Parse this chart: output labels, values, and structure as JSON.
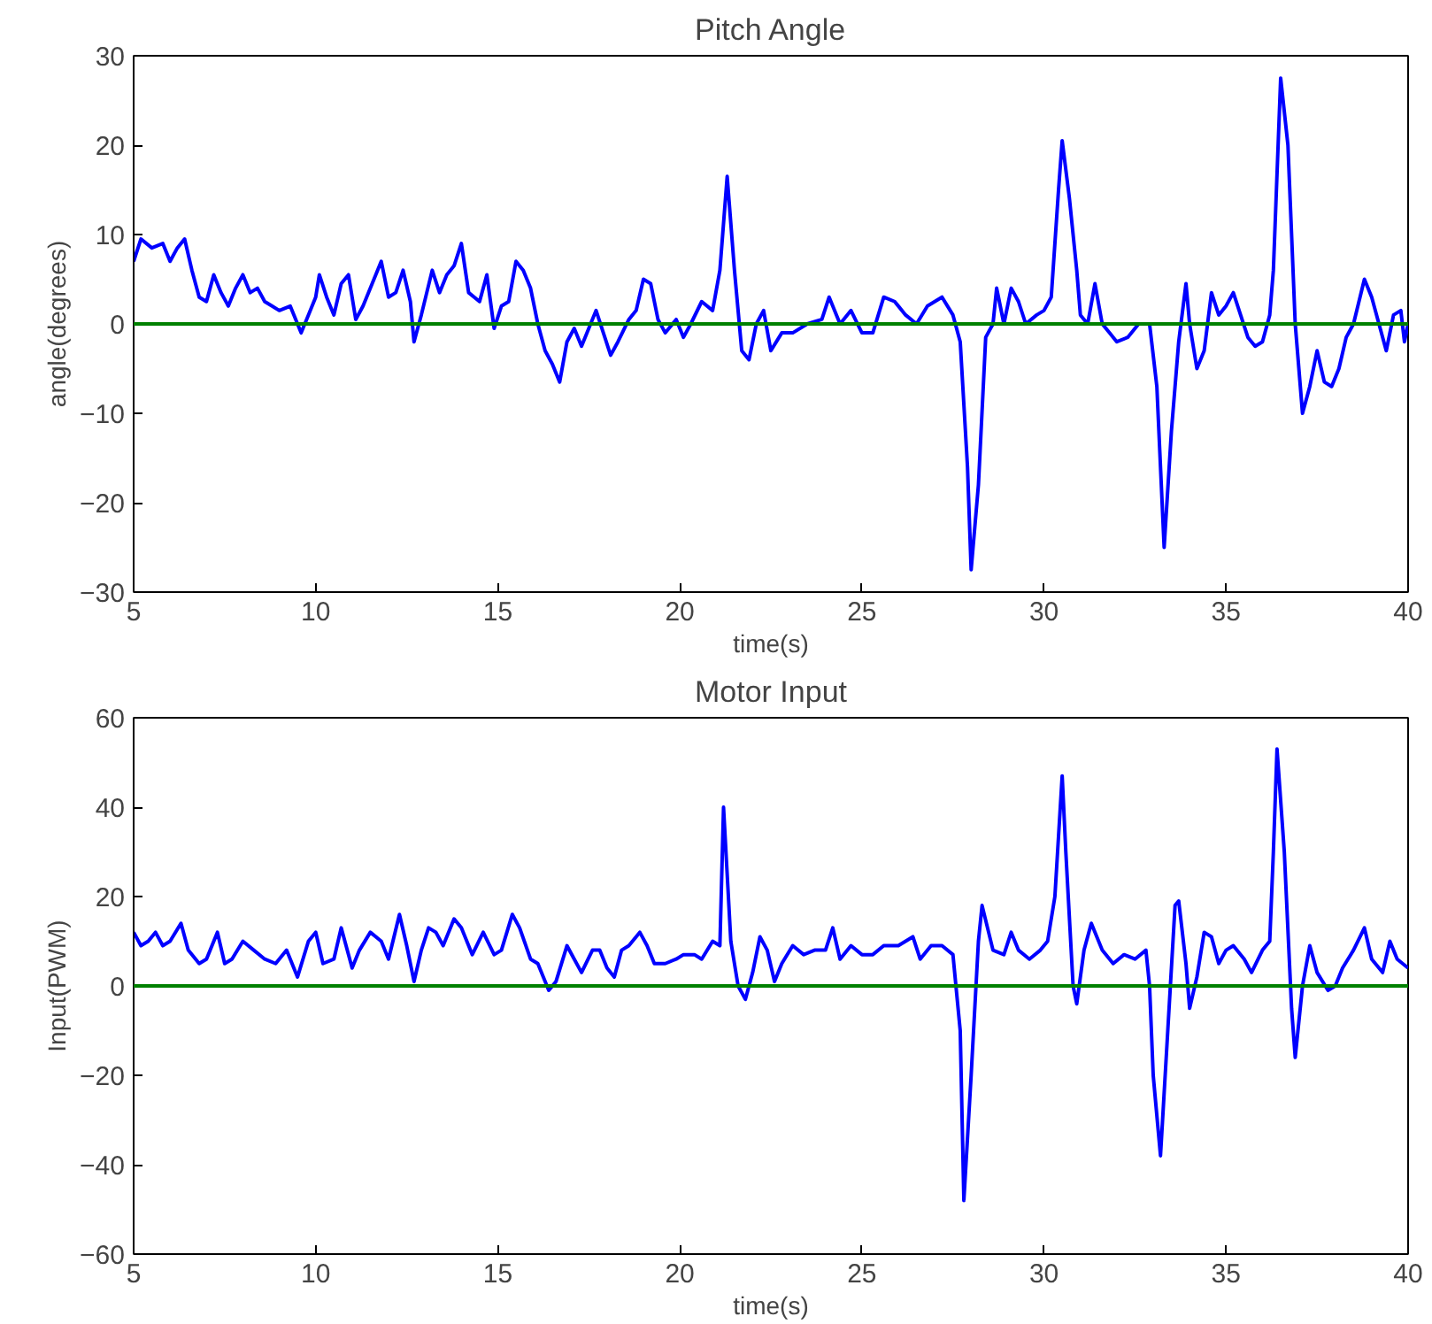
{
  "chart_data": [
    {
      "type": "line",
      "title": "Pitch Angle",
      "xlabel": "time(s)",
      "ylabel": "angle(degrees)",
      "xlim": [
        5,
        40
      ],
      "xticks": [
        5,
        10,
        15,
        20,
        25,
        30,
        35,
        40
      ],
      "ylim": [
        -30,
        30
      ],
      "yticks": [
        -30,
        -20,
        -10,
        0,
        10,
        20,
        30
      ],
      "ref_lines": [
        {
          "axis": "y",
          "value": 0,
          "color": "#008000"
        }
      ],
      "x": [
        5,
        5.2,
        5.5,
        5.8,
        6.0,
        6.2,
        6.4,
        6.6,
        6.8,
        7.0,
        7.2,
        7.4,
        7.6,
        7.8,
        8.0,
        8.2,
        8.4,
        8.6,
        8.8,
        9.0,
        9.3,
        9.6,
        9.8,
        10.0,
        10.1,
        10.3,
        10.5,
        10.7,
        10.9,
        11.1,
        11.3,
        11.6,
        11.8,
        12.0,
        12.2,
        12.4,
        12.6,
        12.7,
        12.9,
        13.2,
        13.4,
        13.6,
        13.8,
        14.0,
        14.2,
        14.5,
        14.7,
        14.9,
        15.1,
        15.3,
        15.5,
        15.7,
        15.9,
        16.1,
        16.3,
        16.5,
        16.7,
        16.9,
        17.1,
        17.3,
        17.5,
        17.7,
        17.9,
        18.1,
        18.3,
        18.6,
        18.8,
        19.0,
        19.2,
        19.4,
        19.6,
        19.9,
        20.1,
        20.3,
        20.6,
        20.9,
        21.1,
        21.3,
        21.5,
        21.7,
        21.9,
        22.1,
        22.3,
        22.5,
        22.8,
        23.1,
        23.5,
        23.9,
        24.1,
        24.4,
        24.7,
        25.0,
        25.3,
        25.6,
        25.9,
        26.2,
        26.5,
        26.8,
        27.2,
        27.5,
        27.7,
        27.9,
        28.0,
        28.2,
        28.4,
        28.6,
        28.7,
        28.9,
        29.1,
        29.3,
        29.5,
        29.8,
        30.0,
        30.2,
        30.4,
        30.5,
        30.7,
        30.9,
        31.0,
        31.2,
        31.4,
        31.6,
        31.8,
        32.0,
        32.3,
        32.6,
        32.9,
        33.1,
        33.3,
        33.5,
        33.7,
        33.9,
        34.0,
        34.2,
        34.4,
        34.6,
        34.8,
        35.0,
        35.2,
        35.4,
        35.6,
        35.8,
        36.0,
        36.2,
        36.3,
        36.5,
        36.7,
        36.9,
        37.1,
        37.3,
        37.5,
        37.7,
        37.9,
        38.1,
        38.3,
        38.5,
        38.8,
        39.0,
        39.2,
        39.4,
        39.6,
        39.8,
        39.9,
        40.0
      ],
      "series": [
        {
          "color": "#0000ff",
          "values": [
            7,
            9.5,
            8.5,
            9,
            7,
            8.5,
            9.5,
            6,
            3,
            2.5,
            5.5,
            3.5,
            2,
            4,
            5.5,
            3.5,
            4,
            2.5,
            2,
            1.5,
            2,
            -1,
            1,
            3,
            5.5,
            3,
            1,
            4.5,
            5.5,
            0.5,
            2,
            5,
            7,
            3,
            3.5,
            6,
            2.5,
            -2,
            1,
            6,
            3.5,
            5.5,
            6.5,
            9,
            3.5,
            2.5,
            5.5,
            -0.5,
            2,
            2.5,
            7,
            6,
            4,
            0,
            -3,
            -4.5,
            -6.5,
            -2,
            -0.5,
            -2.5,
            -0.5,
            1.5,
            -1,
            -3.5,
            -2,
            0.5,
            1.5,
            5,
            4.5,
            0.5,
            -1,
            0.5,
            -1.5,
            0,
            2.5,
            1.5,
            6,
            16.5,
            6,
            -3,
            -4,
            0,
            1.5,
            -3,
            -1,
            -1,
            0,
            0.5,
            3,
            0,
            1.5,
            -1,
            -1,
            3,
            2.5,
            1,
            0,
            2,
            3,
            1,
            -2,
            -16,
            -27.5,
            -18,
            -1.5,
            0,
            4,
            0,
            4,
            2.5,
            0,
            1,
            1.5,
            3,
            15,
            20.5,
            14,
            6,
            1,
            0,
            4.5,
            0,
            -1,
            -2,
            -1.5,
            0,
            0,
            -7,
            -25,
            -12,
            -2,
            4.5,
            0,
            -5,
            -3,
            3.5,
            1,
            2,
            3.5,
            1,
            -1.5,
            -2.5,
            -2,
            1,
            6,
            27.5,
            20,
            0,
            -10,
            -7,
            -3,
            -6.5,
            -7,
            -5,
            -1.5,
            0,
            5,
            3,
            0,
            -3,
            1,
            1.5,
            -2,
            0
          ]
        }
      ]
    },
    {
      "type": "line",
      "title": "Motor Input",
      "xlabel": "time(s)",
      "ylabel": "Input(PWM)",
      "xlim": [
        5,
        40
      ],
      "xticks": [
        5,
        10,
        15,
        20,
        25,
        30,
        35,
        40
      ],
      "ylim": [
        -60,
        60
      ],
      "yticks": [
        -60,
        -40,
        -20,
        0,
        20,
        40,
        60
      ],
      "ref_lines": [
        {
          "axis": "y",
          "value": 0,
          "color": "#008000"
        }
      ],
      "x": [
        5,
        5.2,
        5.4,
        5.6,
        5.8,
        6.0,
        6.3,
        6.5,
        6.8,
        7.0,
        7.3,
        7.5,
        7.7,
        8.0,
        8.3,
        8.6,
        8.9,
        9.2,
        9.5,
        9.8,
        10.0,
        10.2,
        10.5,
        10.7,
        11.0,
        11.2,
        11.5,
        11.8,
        12.0,
        12.3,
        12.5,
        12.7,
        12.9,
        13.1,
        13.3,
        13.5,
        13.8,
        14.0,
        14.3,
        14.6,
        14.9,
        15.1,
        15.4,
        15.6,
        15.9,
        16.1,
        16.4,
        16.6,
        16.9,
        17.1,
        17.3,
        17.6,
        17.8,
        18.0,
        18.2,
        18.4,
        18.6,
        18.9,
        19.1,
        19.3,
        19.6,
        19.9,
        20.1,
        20.4,
        20.6,
        20.9,
        21.1,
        21.2,
        21.4,
        21.6,
        21.8,
        22.0,
        22.2,
        22.4,
        22.6,
        22.8,
        23.1,
        23.4,
        23.7,
        24.0,
        24.2,
        24.4,
        24.7,
        25.0,
        25.3,
        25.6,
        26.0,
        26.4,
        26.6,
        26.9,
        27.2,
        27.5,
        27.7,
        27.8,
        28.0,
        28.2,
        28.3,
        28.6,
        28.9,
        29.1,
        29.3,
        29.6,
        29.9,
        30.1,
        30.3,
        30.5,
        30.6,
        30.8,
        30.9,
        31.1,
        31.3,
        31.6,
        31.9,
        32.2,
        32.5,
        32.8,
        32.9,
        33.0,
        33.2,
        33.4,
        33.6,
        33.7,
        33.9,
        34.0,
        34.2,
        34.4,
        34.6,
        34.8,
        35.0,
        35.2,
        35.5,
        35.7,
        36.0,
        36.2,
        36.3,
        36.4,
        36.6,
        36.8,
        36.9,
        37.1,
        37.3,
        37.5,
        37.8,
        38.0,
        38.2,
        38.5,
        38.8,
        39.0,
        39.3,
        39.5,
        39.7,
        40.0
      ],
      "series": [
        {
          "color": "#0000ff",
          "values": [
            12,
            9,
            10,
            12,
            9,
            10,
            14,
            8,
            5,
            6,
            12,
            5,
            6,
            10,
            8,
            6,
            5,
            8,
            2,
            10,
            12,
            5,
            6,
            13,
            4,
            8,
            12,
            10,
            6,
            16,
            9,
            1,
            8,
            13,
            12,
            9,
            15,
            13,
            7,
            12,
            7,
            8,
            16,
            13,
            6,
            5,
            -1,
            1,
            9,
            6,
            3,
            8,
            8,
            4,
            2,
            8,
            9,
            12,
            9,
            5,
            5,
            6,
            7,
            7,
            6,
            10,
            9,
            40,
            10,
            0,
            -3,
            3,
            11,
            8,
            1,
            5,
            9,
            7,
            8,
            8,
            13,
            6,
            9,
            7,
            7,
            9,
            9,
            11,
            6,
            9,
            9,
            7,
            -10,
            -48,
            -20,
            10,
            18,
            8,
            7,
            12,
            8,
            6,
            8,
            10,
            20,
            47,
            30,
            0,
            -4,
            8,
            14,
            8,
            5,
            7,
            6,
            8,
            0,
            -20,
            -38,
            -10,
            18,
            19,
            5,
            -5,
            2,
            12,
            11,
            5,
            8,
            9,
            6,
            3,
            8,
            10,
            30,
            53,
            30,
            -5,
            -16,
            0,
            9,
            3,
            -1,
            0,
            4,
            8,
            13,
            6,
            3,
            10,
            6,
            4
          ]
        }
      ]
    }
  ]
}
